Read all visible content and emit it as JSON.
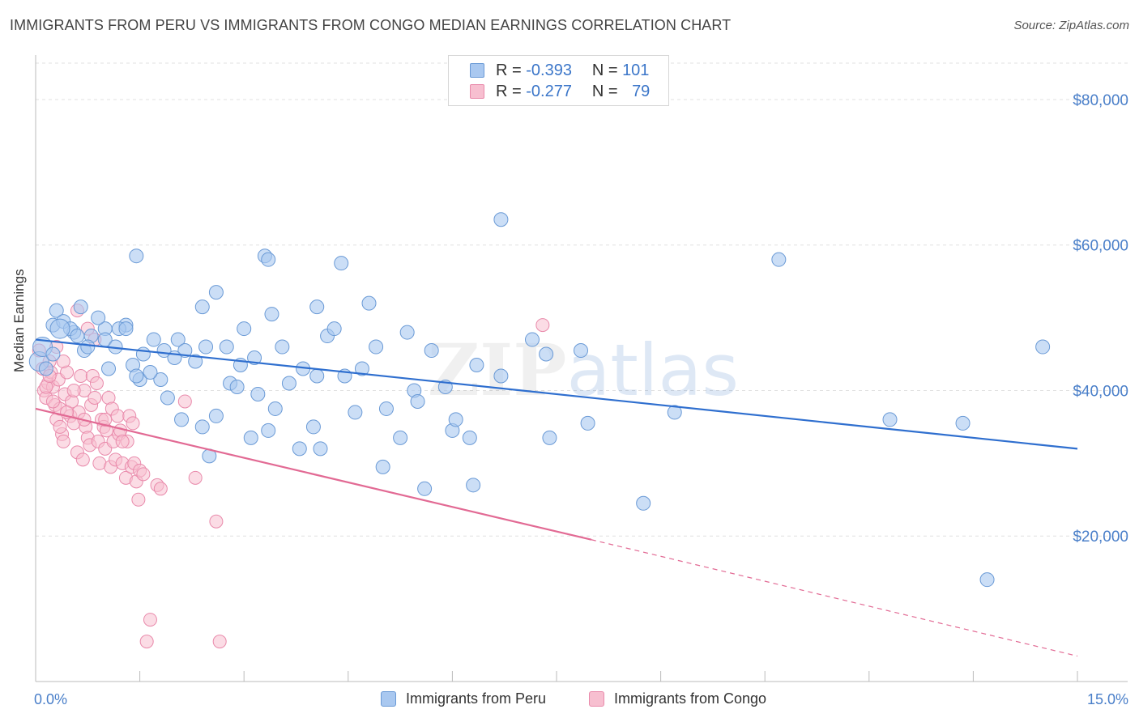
{
  "header": {
    "title": "IMMIGRANTS FROM PERU VS IMMIGRANTS FROM CONGO MEDIAN EARNINGS CORRELATION CHART",
    "source": "Source: ZipAtlas.com"
  },
  "watermark": "ZIPatlas",
  "legend_top": {
    "rows": [
      {
        "r_label": "R =",
        "r_value": "-0.393",
        "n_label": "N =",
        "n_value": "101"
      },
      {
        "r_label": "R =",
        "r_value": "-0.277",
        "n_label": "N =",
        "n_value": "79"
      }
    ]
  },
  "legend_bottom": {
    "items": [
      {
        "label": "Immigrants from Peru"
      },
      {
        "label": "Immigrants from Congo"
      }
    ]
  },
  "colors": {
    "peru_fill": "#a9c8f0",
    "peru_stroke": "#6a9ad6",
    "peru_line": "#2f6fcf",
    "congo_fill": "#f7bfd0",
    "congo_stroke": "#e98aab",
    "congo_line": "#e26a94",
    "grid": "#e0e0e0",
    "axis_text": "#4a7fc9"
  },
  "chart_data": {
    "type": "scatter",
    "title": "IMMIGRANTS FROM PERU VS IMMIGRANTS FROM CONGO MEDIAN EARNINGS CORRELATION CHART",
    "xlabel": "",
    "ylabel": "Median Earnings",
    "x_range": [
      0,
      15
    ],
    "y_range": [
      0,
      85000
    ],
    "x_tick_labels": [
      "0.0%",
      "15.0%"
    ],
    "y_ticks": [
      20000,
      40000,
      60000,
      80000
    ],
    "y_tick_labels": [
      "$20,000",
      "$40,000",
      "$60,000",
      "$80,000"
    ],
    "grid": true,
    "series": [
      {
        "name": "Immigrants from Peru",
        "trend": {
          "x0": 0.0,
          "y0": 47000,
          "x1": 15.0,
          "y1": 32000
        },
        "points": [
          [
            0.05,
            44000
          ],
          [
            0.1,
            46000
          ],
          [
            0.25,
            49000
          ],
          [
            0.3,
            51000
          ],
          [
            0.4,
            49500
          ],
          [
            0.55,
            48000
          ],
          [
            0.7,
            45500
          ],
          [
            0.8,
            47500
          ],
          [
            0.65,
            51500
          ],
          [
            1.0,
            48500
          ],
          [
            1.05,
            43000
          ],
          [
            1.3,
            49000
          ],
          [
            1.2,
            48500
          ],
          [
            1.4,
            43500
          ],
          [
            1.5,
            41500
          ],
          [
            1.55,
            45000
          ],
          [
            1.7,
            47000
          ],
          [
            1.8,
            41500
          ],
          [
            1.85,
            45500
          ],
          [
            1.9,
            39000
          ],
          [
            2.05,
            47000
          ],
          [
            2.1,
            36000
          ],
          [
            2.3,
            44000
          ],
          [
            2.4,
            35000
          ],
          [
            2.45,
            46000
          ],
          [
            2.5,
            31000
          ],
          [
            2.6,
            36500
          ],
          [
            2.75,
            46000
          ],
          [
            2.8,
            41000
          ],
          [
            2.95,
            43500
          ],
          [
            3.1,
            33500
          ],
          [
            3.15,
            44500
          ],
          [
            3.2,
            39500
          ],
          [
            3.35,
            34500
          ],
          [
            3.45,
            37500
          ],
          [
            3.55,
            46000
          ],
          [
            3.65,
            41000
          ],
          [
            3.8,
            32000
          ],
          [
            3.85,
            43000
          ],
          [
            4.0,
            35000
          ],
          [
            4.05,
            42000
          ],
          [
            4.1,
            32000
          ],
          [
            4.2,
            47500
          ],
          [
            4.3,
            48500
          ],
          [
            4.45,
            42000
          ],
          [
            4.6,
            37000
          ],
          [
            4.7,
            43000
          ],
          [
            4.8,
            52000
          ],
          [
            4.9,
            46000
          ],
          [
            5.0,
            29500
          ],
          [
            5.05,
            37500
          ],
          [
            5.25,
            33500
          ],
          [
            5.35,
            48000
          ],
          [
            5.45,
            40000
          ],
          [
            5.6,
            26500
          ],
          [
            5.7,
            45500
          ],
          [
            5.9,
            40500
          ],
          [
            6.0,
            34500
          ],
          [
            6.05,
            36000
          ],
          [
            6.3,
            27000
          ],
          [
            6.25,
            33500
          ],
          [
            6.35,
            43500
          ],
          [
            6.7,
            63500
          ],
          [
            7.15,
            47000
          ],
          [
            7.35,
            45000
          ],
          [
            7.4,
            33500
          ],
          [
            7.85,
            45500
          ],
          [
            7.95,
            35500
          ],
          [
            8.75,
            24500
          ],
          [
            9.2,
            37000
          ],
          [
            10.7,
            58000
          ],
          [
            12.3,
            36000
          ],
          [
            13.35,
            35500
          ],
          [
            13.7,
            14000
          ],
          [
            14.5,
            46000
          ],
          [
            3.3,
            58500
          ],
          [
            3.35,
            58000
          ],
          [
            4.4,
            57500
          ],
          [
            1.45,
            58500
          ],
          [
            2.6,
            53500
          ],
          [
            2.4,
            51500
          ],
          [
            1.0,
            47000
          ],
          [
            1.3,
            48500
          ],
          [
            0.15,
            43000
          ],
          [
            0.5,
            48500
          ],
          [
            0.9,
            50000
          ],
          [
            1.65,
            42500
          ],
          [
            2.15,
            45500
          ],
          [
            3.0,
            48500
          ],
          [
            2.0,
            44500
          ],
          [
            0.75,
            46000
          ],
          [
            3.4,
            50500
          ],
          [
            4.05,
            51500
          ],
          [
            5.5,
            38500
          ],
          [
            6.7,
            42000
          ],
          [
            2.9,
            40500
          ],
          [
            1.45,
            42000
          ],
          [
            0.25,
            45000
          ],
          [
            0.6,
            47500
          ],
          [
            1.15,
            46000
          ],
          [
            0.35,
            48500
          ]
        ]
      },
      {
        "name": "Immigrants from Congo",
        "trend": {
          "x0": 0.0,
          "y0": 37500,
          "x1": 8.0,
          "y1": 19500,
          "dashed_to": {
            "x": 15.0,
            "y": 3500
          }
        },
        "points": [
          [
            0.05,
            45500
          ],
          [
            0.1,
            43000
          ],
          [
            0.12,
            40000
          ],
          [
            0.15,
            39000
          ],
          [
            0.18,
            41000
          ],
          [
            0.2,
            44000
          ],
          [
            0.22,
            42500
          ],
          [
            0.25,
            40500
          ],
          [
            0.28,
            38000
          ],
          [
            0.3,
            36000
          ],
          [
            0.33,
            41500
          ],
          [
            0.35,
            37500
          ],
          [
            0.38,
            34000
          ],
          [
            0.4,
            33000
          ],
          [
            0.42,
            39500
          ],
          [
            0.45,
            42500
          ],
          [
            0.5,
            36500
          ],
          [
            0.52,
            38500
          ],
          [
            0.55,
            35500
          ],
          [
            0.6,
            31500
          ],
          [
            0.62,
            37000
          ],
          [
            0.65,
            42000
          ],
          [
            0.68,
            30500
          ],
          [
            0.7,
            40000
          ],
          [
            0.72,
            35000
          ],
          [
            0.75,
            33500
          ],
          [
            0.78,
            32500
          ],
          [
            0.8,
            38000
          ],
          [
            0.82,
            42000
          ],
          [
            0.85,
            47000
          ],
          [
            0.88,
            41000
          ],
          [
            0.9,
            33000
          ],
          [
            0.92,
            30000
          ],
          [
            0.95,
            36000
          ],
          [
            0.98,
            35000
          ],
          [
            1.0,
            32000
          ],
          [
            1.02,
            34500
          ],
          [
            1.05,
            39000
          ],
          [
            1.08,
            29500
          ],
          [
            1.1,
            37500
          ],
          [
            1.12,
            33000
          ],
          [
            1.15,
            30500
          ],
          [
            1.18,
            36500
          ],
          [
            1.2,
            34000
          ],
          [
            1.22,
            34500
          ],
          [
            1.25,
            30000
          ],
          [
            1.3,
            28000
          ],
          [
            1.32,
            33000
          ],
          [
            1.35,
            36500
          ],
          [
            1.38,
            29500
          ],
          [
            1.4,
            35500
          ],
          [
            1.42,
            30000
          ],
          [
            1.45,
            27500
          ],
          [
            1.48,
            25000
          ],
          [
            1.5,
            29000
          ],
          [
            1.55,
            28500
          ],
          [
            1.6,
            5500
          ],
          [
            1.65,
            8500
          ],
          [
            1.75,
            27000
          ],
          [
            1.8,
            26500
          ],
          [
            2.15,
            38500
          ],
          [
            2.3,
            28000
          ],
          [
            2.6,
            22000
          ],
          [
            2.65,
            5500
          ],
          [
            0.6,
            51000
          ],
          [
            0.75,
            48500
          ],
          [
            7.3,
            49000
          ],
          [
            0.3,
            46000
          ],
          [
            0.4,
            44000
          ],
          [
            0.15,
            40500
          ],
          [
            0.2,
            42000
          ],
          [
            0.45,
            37000
          ],
          [
            0.55,
            40000
          ],
          [
            0.7,
            36000
          ],
          [
            0.85,
            39000
          ],
          [
            1.0,
            36000
          ],
          [
            1.25,
            33000
          ],
          [
            0.25,
            38500
          ],
          [
            0.35,
            35000
          ]
        ]
      }
    ]
  }
}
